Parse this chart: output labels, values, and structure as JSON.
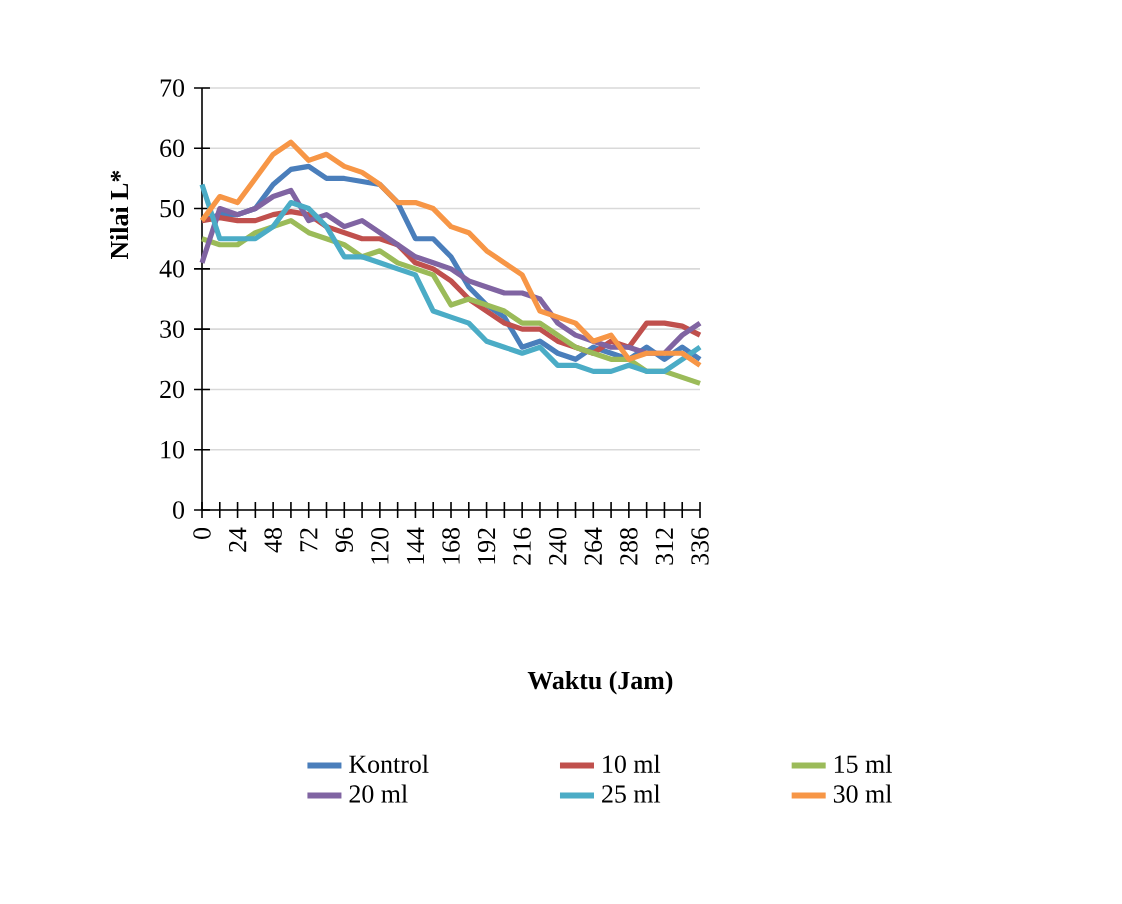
{
  "chart_data": {
    "type": "line",
    "xlabel": "Waktu (Jam)",
    "ylabel": "Nilai L*",
    "x": [
      0,
      12,
      24,
      36,
      48,
      60,
      72,
      84,
      96,
      108,
      120,
      132,
      144,
      156,
      168,
      180,
      192,
      204,
      216,
      228,
      240,
      252,
      264,
      276,
      288,
      300,
      312,
      324,
      336
    ],
    "series": [
      {
        "name": "Kontrol",
        "color": "#4a7ebb",
        "values": [
          48,
          49,
          49,
          50,
          54,
          56.5,
          57,
          55,
          55,
          54.5,
          54,
          51,
          45,
          45,
          42,
          37,
          34,
          32,
          27,
          28,
          26,
          25,
          27,
          26,
          25,
          27,
          25,
          27,
          25
        ]
      },
      {
        "name": "10 ml",
        "color": "#c0504d",
        "values": [
          48,
          48.5,
          48,
          48,
          49,
          49.5,
          49,
          47,
          46,
          45,
          45,
          44,
          41,
          40,
          38,
          35,
          33,
          31,
          30,
          30,
          28,
          27,
          26,
          28,
          27,
          31,
          31,
          30.5,
          29
        ]
      },
      {
        "name": "15 ml",
        "color": "#9bbb59",
        "values": [
          45,
          44,
          44,
          46,
          47,
          48,
          46,
          45,
          44,
          42,
          43,
          41,
          40,
          39,
          34,
          35,
          34,
          33,
          31,
          31,
          29,
          27,
          26,
          25,
          25,
          23,
          23,
          22,
          21
        ]
      },
      {
        "name": "20 ml",
        "color": "#8064a2",
        "values": [
          41,
          50,
          49,
          50,
          52,
          53,
          48,
          49,
          47,
          48,
          46,
          44,
          42,
          41,
          40,
          38,
          37,
          36,
          36,
          35,
          31,
          29,
          28,
          27,
          27,
          26,
          26,
          29,
          31
        ]
      },
      {
        "name": "25 ml",
        "color": "#4bacc6",
        "values": [
          54,
          45,
          45,
          45,
          47,
          51,
          50,
          47,
          42,
          42,
          41,
          40,
          39,
          33,
          32,
          31,
          28,
          27,
          26,
          27,
          24,
          24,
          23,
          23,
          24,
          23,
          23,
          25,
          27
        ]
      },
      {
        "name": "30 ml",
        "color": "#f79646",
        "values": [
          48,
          52,
          51,
          55,
          59,
          61,
          58,
          59,
          57,
          56,
          54,
          51,
          51,
          50,
          47,
          46,
          43,
          41,
          39,
          33,
          32,
          31,
          28,
          29,
          25,
          26,
          26,
          26,
          24
        ]
      }
    ],
    "xlim": [
      0,
      336
    ],
    "ylim": [
      0,
      70
    ],
    "xticks": [
      0,
      24,
      48,
      72,
      96,
      120,
      144,
      168,
      192,
      216,
      240,
      264,
      288,
      312,
      336
    ],
    "yticks": [
      0,
      10,
      20,
      30,
      40,
      50,
      60,
      70
    ],
    "grid": "y",
    "legend": "bottom",
    "marker": "none",
    "line_style": "solid"
  }
}
